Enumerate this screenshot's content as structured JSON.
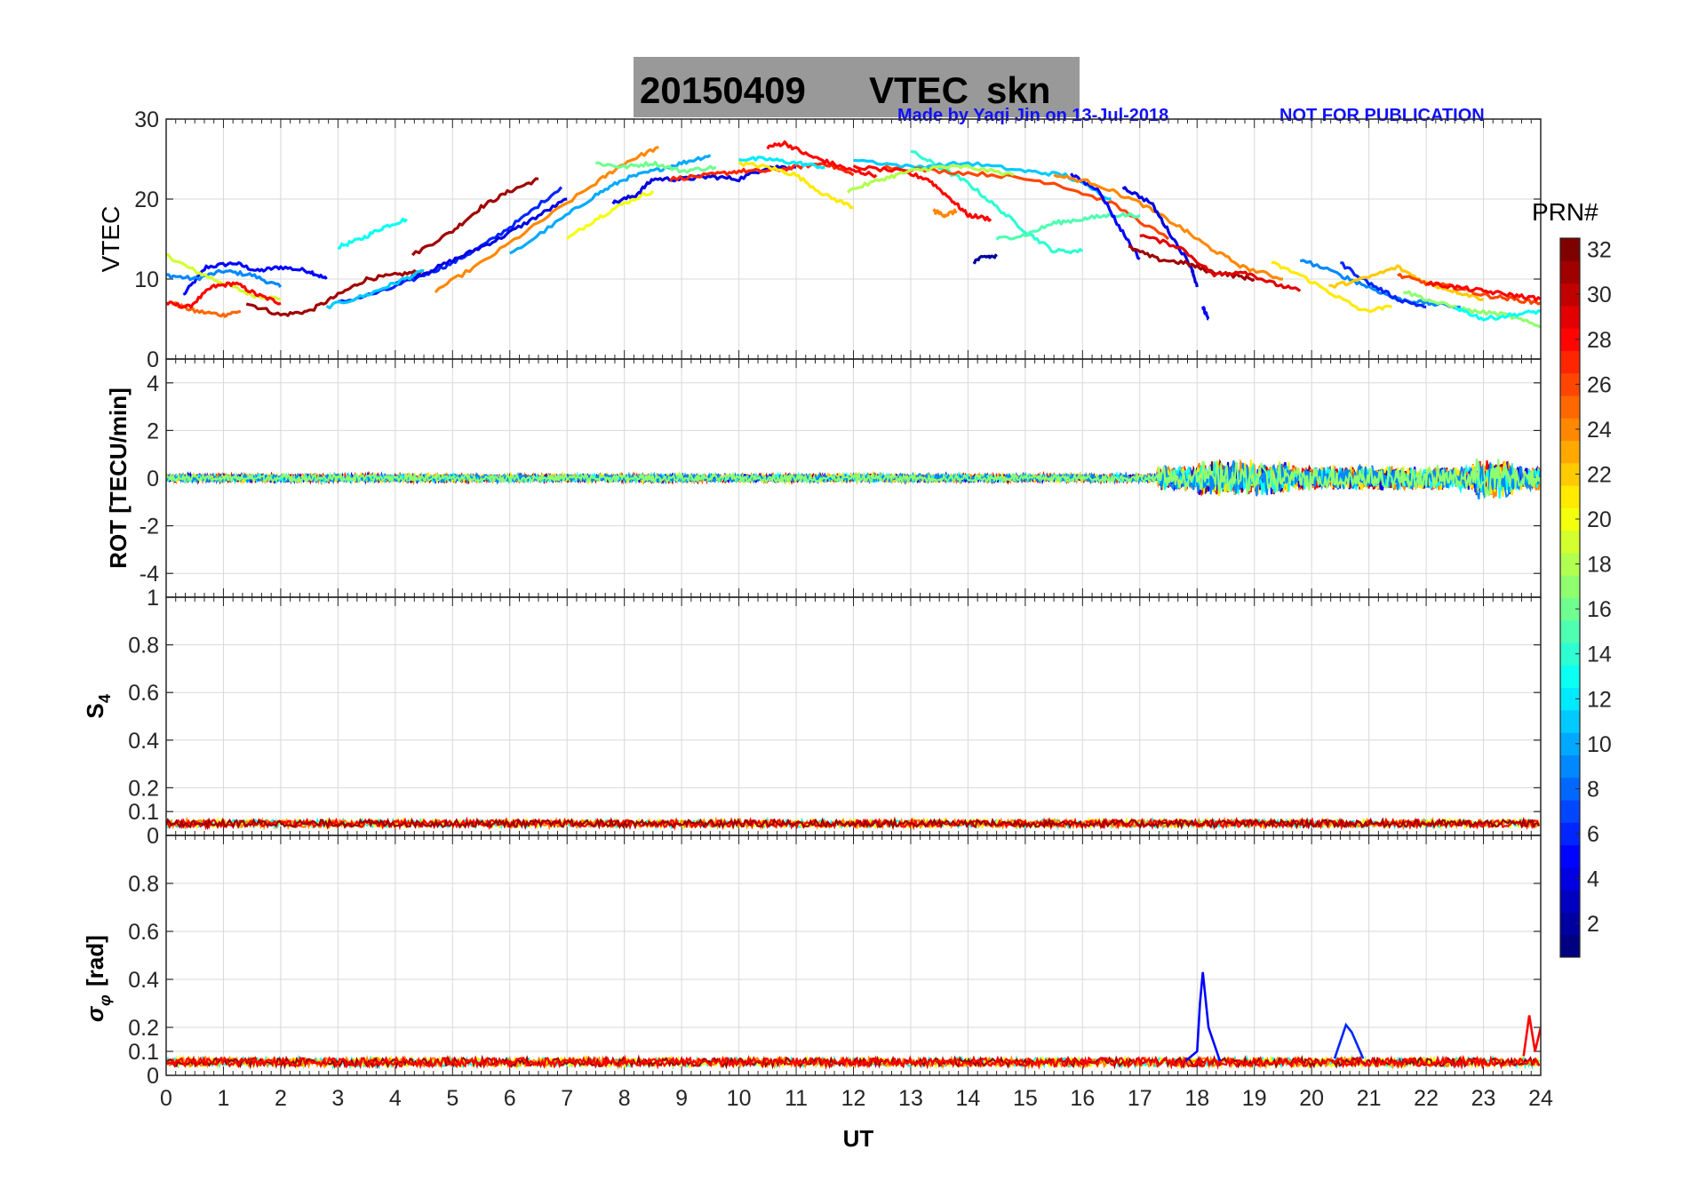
{
  "title": {
    "date": "20150409",
    "quantity": "VTEC",
    "station": "skn"
  },
  "credit": {
    "made_by": "Made by Yaqi Jin on 13-Jul-2018",
    "notice": "NOT FOR PUBLICATION"
  },
  "colorbar": {
    "label": "PRN#",
    "range": [
      1,
      32
    ],
    "tick_labels": [
      "2",
      "4",
      "6",
      "8",
      "10",
      "12",
      "14",
      "16",
      "18",
      "20",
      "22",
      "24",
      "26",
      "28",
      "30",
      "32"
    ],
    "colormap": "jet"
  },
  "chart_data": [
    {
      "type": "line",
      "panel": "vtec",
      "ylabel": "VTEC",
      "xlim": [
        0,
        24
      ],
      "ylim": [
        0,
        30
      ],
      "yticks": [
        0,
        10,
        20,
        30
      ],
      "grid": true,
      "series": [
        {
          "prn": 5,
          "x": [
            0.3,
            0.7,
            1.2,
            1.6,
            2.0,
            2.5,
            2.8
          ],
          "y": [
            8,
            11.5,
            12,
            11,
            11.5,
            11,
            10
          ]
        },
        {
          "prn": 9,
          "x": [
            0.0,
            0.5,
            1.0,
            1.5,
            2.0
          ],
          "y": [
            10.5,
            10,
            11,
            10.5,
            9
          ]
        },
        {
          "prn": 19,
          "x": [
            0.0,
            0.5,
            1.0,
            1.5,
            2.0
          ],
          "y": [
            13,
            11,
            9.5,
            8,
            7.5
          ]
        },
        {
          "prn": 25,
          "x": [
            0.1,
            0.5,
            1.0,
            1.3
          ],
          "y": [
            7,
            6,
            5.5,
            6
          ]
        },
        {
          "prn": 28,
          "x": [
            0.0,
            0.4,
            0.8,
            1.2,
            1.6,
            2.0
          ],
          "y": [
            7,
            6.5,
            9,
            9.5,
            8,
            7
          ]
        },
        {
          "prn": 31,
          "x": [
            1.4,
            2.0,
            2.5,
            3.0,
            3.5,
            4.0,
            4.5
          ],
          "y": [
            7,
            5.5,
            6,
            8,
            10,
            10.5,
            11
          ]
        },
        {
          "prn": 13,
          "x": [
            3.0,
            3.4,
            3.8,
            4.2
          ],
          "y": [
            14,
            15,
            16.5,
            17.5
          ]
        },
        {
          "prn": 31,
          "x": [
            4.3,
            5.0,
            5.5,
            6.0,
            6.5
          ],
          "y": [
            13,
            16,
            19,
            21,
            22.5
          ]
        },
        {
          "prn": 6,
          "x": [
            3.0,
            3.8,
            4.5,
            5.0,
            5.6,
            6.2,
            6.9
          ],
          "y": [
            7,
            8.5,
            10.5,
            12,
            14.5,
            17.5,
            21.5
          ]
        },
        {
          "prn": 4,
          "x": [
            4.0,
            4.6,
            5.2,
            5.8,
            6.4,
            7.0
          ],
          "y": [
            9.5,
            11,
            13,
            15,
            17.5,
            20
          ]
        },
        {
          "prn": 11,
          "x": [
            2.8,
            3.5,
            4.0,
            4.5
          ],
          "y": [
            6.5,
            8,
            9.5,
            11
          ]
        },
        {
          "prn": 24,
          "x": [
            4.7,
            5.5,
            6.5,
            7.5,
            8.0,
            8.6
          ],
          "y": [
            8.5,
            12,
            17,
            22,
            24.5,
            26.5
          ]
        },
        {
          "prn": 10,
          "x": [
            6.0,
            6.8,
            7.5,
            8.0,
            8.5,
            9.0,
            9.5
          ],
          "y": [
            13,
            17,
            20.5,
            22.5,
            23.5,
            24.5,
            25.5
          ]
        },
        {
          "prn": 16,
          "x": [
            7.5,
            8.0,
            8.5,
            9.0,
            9.6
          ],
          "y": [
            24.5,
            24,
            24.5,
            23.5,
            24
          ]
        },
        {
          "prn": 20,
          "x": [
            7.0,
            7.5,
            8.0,
            8.5
          ],
          "y": [
            15,
            17.5,
            19.5,
            21
          ]
        },
        {
          "prn": 4,
          "x": [
            7.8,
            8.2,
            8.5,
            9.0,
            9.5,
            10.0,
            10.5,
            11.0
          ],
          "y": [
            19.5,
            20.5,
            22.5,
            22.5,
            22.8,
            22.5,
            24,
            24
          ]
        },
        {
          "prn": 27,
          "x": [
            8.8,
            9.5,
            10.0,
            10.5,
            11.0,
            11.5,
            12.0
          ],
          "y": [
            22.5,
            23,
            23.5,
            23.5,
            24,
            24.5,
            23
          ]
        },
        {
          "prn": 28,
          "x": [
            10.5,
            10.8,
            11.2,
            11.6,
            12.0,
            12.4
          ],
          "y": [
            26.5,
            27,
            25.5,
            24.5,
            23.5,
            23
          ]
        },
        {
          "prn": 21,
          "x": [
            10.0,
            10.5,
            11.0,
            11.5,
            12.0
          ],
          "y": [
            24.5,
            24,
            23,
            20.5,
            19
          ]
        },
        {
          "prn": 12,
          "x": [
            10.0,
            10.5,
            11.0,
            11.5
          ],
          "y": [
            25,
            25,
            24.5,
            24
          ]
        },
        {
          "prn": 14,
          "x": [
            13.0,
            13.5,
            14.0,
            14.5,
            15.0,
            15.5,
            16.0
          ],
          "y": [
            26,
            24,
            22,
            19,
            16,
            13.5,
            13.5
          ]
        },
        {
          "prn": 11,
          "x": [
            12.0,
            13.0,
            14.0,
            15.0,
            15.7,
            16.5
          ],
          "y": [
            25,
            24,
            24.5,
            23.5,
            23,
            20
          ]
        },
        {
          "prn": 26,
          "x": [
            12.5,
            13.5,
            14.5,
            15.5,
            16.5,
            17.5
          ],
          "y": [
            24,
            23.5,
            23,
            22,
            19.5,
            15
          ]
        },
        {
          "prn": 28,
          "x": [
            12.0,
            12.8,
            13.3,
            13.7,
            14.0,
            14.4
          ],
          "y": [
            24,
            23.5,
            22.5,
            20,
            18,
            17.5
          ]
        },
        {
          "prn": 18,
          "x": [
            11.9,
            12.5,
            13.0,
            13.5,
            14.0,
            14.8
          ],
          "y": [
            21,
            22.5,
            23.5,
            24,
            24,
            23
          ]
        },
        {
          "prn": 24,
          "x": [
            13.4,
            13.6,
            13.8
          ],
          "y": [
            18.5,
            18,
            18.5
          ]
        },
        {
          "prn": 2,
          "x": [
            14.1,
            14.3,
            14.5
          ],
          "y": [
            12.2,
            12.8,
            12.8
          ]
        },
        {
          "prn": 15,
          "x": [
            14.5,
            15.0,
            15.5,
            16.0,
            16.5,
            17.0
          ],
          "y": [
            15,
            15.5,
            17,
            17.5,
            18,
            18
          ]
        },
        {
          "prn": 5,
          "x": [
            15.8,
            16.3,
            16.6,
            17.0
          ],
          "y": [
            23,
            21,
            17,
            12.5
          ]
        },
        {
          "prn": 24,
          "x": [
            15.5,
            16.2,
            17.0,
            17.7,
            18.2,
            18.8,
            19.5
          ],
          "y": [
            23,
            22,
            19.5,
            16.5,
            14,
            11.5,
            10
          ]
        },
        {
          "prn": 4,
          "x": [
            16.7,
            17.2,
            17.5,
            17.9,
            18.0
          ],
          "y": [
            21.5,
            19.5,
            16,
            11.5,
            9
          ]
        },
        {
          "prn": 31,
          "x": [
            16.8,
            17.3,
            17.8,
            18.2,
            18.6,
            19.0
          ],
          "y": [
            14,
            12.5,
            12,
            11,
            10.5,
            10
          ]
        },
        {
          "prn": 29,
          "x": [
            17.0,
            17.7,
            18.3,
            18.8,
            19.3,
            19.8
          ],
          "y": [
            15.5,
            14,
            10.5,
            11,
            9.5,
            8.5
          ]
        },
        {
          "prn": 5,
          "x": [
            18.1,
            18.2
          ],
          "y": [
            6.5,
            5
          ]
        },
        {
          "prn": 21,
          "x": [
            19.3,
            19.8,
            20.4,
            20.9,
            21.4
          ],
          "y": [
            12,
            10.5,
            8,
            6,
            6.5
          ]
        },
        {
          "prn": 9,
          "x": [
            19.8,
            20.5,
            21.0,
            21.5,
            22.0,
            22.6
          ],
          "y": [
            12.5,
            10.5,
            9,
            7.5,
            7,
            6.5
          ]
        },
        {
          "prn": 6,
          "x": [
            20.5,
            21.0,
            21.5,
            22.0
          ],
          "y": [
            12,
            9.5,
            7.5,
            6.5
          ]
        },
        {
          "prn": 22,
          "x": [
            20.3,
            20.9,
            21.5,
            22.0,
            22.5,
            23.0
          ],
          "y": [
            9,
            10,
            11.5,
            9.5,
            8.5,
            7.5
          ]
        },
        {
          "prn": 17,
          "x": [
            21.6,
            22.2,
            22.8,
            23.4,
            24.0
          ],
          "y": [
            8.5,
            7,
            6,
            5.5,
            4
          ]
        },
        {
          "prn": 13,
          "x": [
            22.5,
            23.0,
            23.5,
            24.0
          ],
          "y": [
            6.5,
            5,
            5.5,
            6
          ]
        },
        {
          "prn": 26,
          "x": [
            21.5,
            22.0,
            22.5,
            23.0,
            23.5,
            24.0
          ],
          "y": [
            10.5,
            9.5,
            9,
            8,
            7.5,
            7
          ]
        },
        {
          "prn": 28,
          "x": [
            22.0,
            22.5,
            23.0,
            23.5,
            24.0
          ],
          "y": [
            9.5,
            9,
            8.5,
            8,
            7.5
          ]
        }
      ]
    },
    {
      "type": "line",
      "panel": "rot",
      "ylabel": "ROT [TECU/min]",
      "xlim": [
        0,
        24
      ],
      "ylim": [
        -5,
        5
      ],
      "yticks": [
        -4,
        -2,
        0,
        2,
        4
      ],
      "grid": true,
      "series": [
        {
          "prn": 28,
          "x": [
            0,
            6,
            12,
            17,
            24
          ],
          "y": [
            0,
            0,
            0,
            0,
            0
          ]
        },
        {
          "prn": 31,
          "x": [
            0,
            6,
            12,
            17,
            24
          ],
          "y": [
            0,
            0,
            0,
            0,
            0
          ]
        }
      ]
    },
    {
      "type": "line",
      "panel": "s4",
      "ylabel": "S4",
      "xlim": [
        0,
        24
      ],
      "ylim": [
        0,
        1
      ],
      "yticks": [
        0,
        0.1,
        0.2,
        0.4,
        0.6,
        0.8,
        1
      ],
      "grid": true,
      "series": [
        {
          "prn": 28,
          "x": [
            0,
            6,
            12,
            18,
            24
          ],
          "y": [
            0.05,
            0.05,
            0.05,
            0.05,
            0.05
          ]
        }
      ]
    },
    {
      "type": "line",
      "panel": "sigma_phi",
      "ylabel": "σφ [rad]",
      "xlabel": "UT",
      "xlim": [
        0,
        24
      ],
      "ylim": [
        0,
        1
      ],
      "yticks": [
        0,
        0.1,
        0.2,
        0.4,
        0.6,
        0.8
      ],
      "xticks": [
        0,
        1,
        2,
        3,
        4,
        5,
        6,
        7,
        8,
        9,
        10,
        11,
        12,
        13,
        14,
        15,
        16,
        17,
        18,
        19,
        20,
        21,
        22,
        23,
        24
      ],
      "grid": true,
      "series": [
        {
          "prn": 5,
          "x": [
            17.8,
            18.0,
            18.05,
            18.1,
            18.2,
            18.4
          ],
          "y": [
            0.06,
            0.1,
            0.3,
            0.43,
            0.2,
            0.06
          ]
        },
        {
          "prn": 6,
          "x": [
            20.4,
            20.6,
            20.7,
            20.9
          ],
          "y": [
            0.07,
            0.21,
            0.18,
            0.07
          ]
        },
        {
          "prn": 28,
          "x": [
            23.7,
            23.8,
            23.9,
            24.0
          ],
          "y": [
            0.08,
            0.25,
            0.1,
            0.2
          ]
        }
      ]
    }
  ]
}
